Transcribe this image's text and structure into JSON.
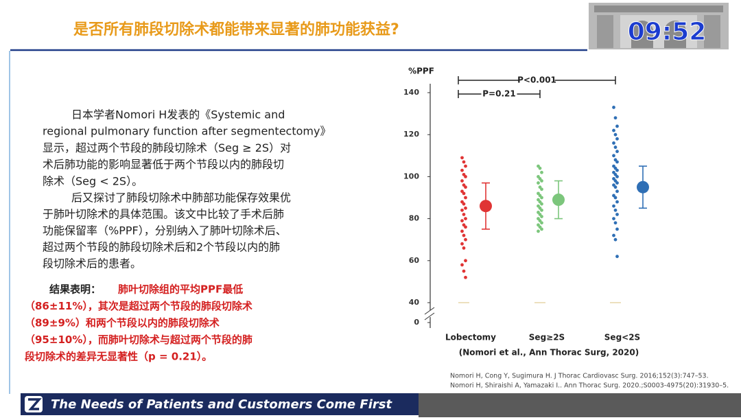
{
  "header": {
    "title": "是否所有肺段切除术都能带来显著的肺功能获益?",
    "timer": "09:52"
  },
  "body": {
    "paragraph_1": [
      "日本学者Nomori H发表的《Systemic and",
      "regional pulmonary function after segmentectomy》",
      "显示，超过两个节段的肺段切除术（Seg ≥ 2S）对",
      "术后肺功能的影响显著低于两个节段以内的肺段切",
      "除术（Seg < 2S）。"
    ],
    "paragraph_2": [
      "后又探讨了肺段切除术中肺部功能保存效果优",
      "于肺叶切除术的具体范围。该文中比较了手术后肺",
      "功能保留率（%PPF），分别纳入了肺叶切除术后、",
      "超过两个节段的肺段切除术后和2个节段以内的肺",
      "段切除术后的患者。"
    ],
    "result_label": "结果表明：",
    "result_lines": [
      "肺叶切除组的平均PPF最低",
      "（86±11%），其次是超过两个节段的肺段切除术",
      "（89±9%）和两个节段以内的肺段切除术",
      "（95±10%），而肺叶切除术与超过两个节段的肺",
      "段切除术的差异无显著性（p = 0.21）。"
    ]
  },
  "chart_data": {
    "type": "dot_plot",
    "y_label": "%PPF",
    "ylim": [
      40,
      140
    ],
    "yticks": [
      40,
      60,
      80,
      100,
      120,
      140
    ],
    "ybreak_tick": 0,
    "annotations": [
      "P<0.001",
      "P=0.21"
    ],
    "source": "(Nomori et al., Ann Thorac Surg, 2020)",
    "groups": [
      {
        "name": "Lobectomy",
        "color": "#e03434",
        "mean": 86,
        "error": 11,
        "points": [
          109,
          107,
          105,
          103,
          101,
          100,
          98,
          96,
          95,
          93,
          92,
          90,
          88,
          87,
          85,
          84,
          82,
          80,
          79,
          77,
          76,
          74,
          72,
          70,
          68,
          66,
          60,
          58,
          55,
          52
        ]
      },
      {
        "name": "Seg≥2S",
        "color": "#7cc67c",
        "mean": 89,
        "error": 9,
        "points": [
          105,
          104,
          102,
          100,
          99,
          98,
          97,
          95,
          94,
          92,
          91,
          90,
          89,
          88,
          87,
          86,
          85,
          84,
          83,
          82,
          81,
          80,
          79,
          78,
          77,
          76,
          75,
          74
        ]
      },
      {
        "name": "Seg<2S",
        "color": "#2f6fb5",
        "mean": 95,
        "error": 10,
        "points": [
          133,
          128,
          124,
          122,
          120,
          118,
          116,
          114,
          112,
          110,
          108,
          107,
          105,
          104,
          103,
          102,
          101,
          100,
          99,
          98,
          97,
          96,
          95,
          93,
          91,
          90,
          88,
          86,
          84,
          82,
          80,
          78,
          75,
          72,
          70,
          62
        ]
      }
    ]
  },
  "references": [
    "Nomori H, Cong Y, Sugimura H.  J Thorac Cardiovasc Surg. 2016;152(3):747–53.",
    "Nomori H, Shiraishi A, Yamazaki I.. Ann Thorac Surg. 2020.;S0003-4975(20):31930–5."
  ],
  "footer": {
    "slogan": "The Needs of Patients and Customers Come First"
  }
}
